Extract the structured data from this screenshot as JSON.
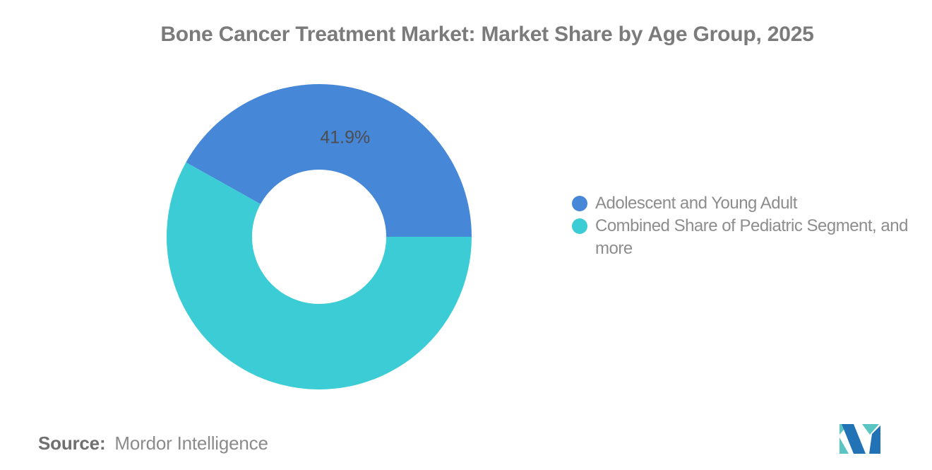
{
  "title": "Bone Cancer Treatment Market: Market Share by Age Group, 2025",
  "chart_data": {
    "type": "pie",
    "subtype": "donut",
    "title": "Bone Cancer Treatment Market: Market Share by Age Group, 2025",
    "categories": [
      "Adolescent and Young Adult",
      "Combined Share of Pediatric Segment, and more"
    ],
    "values": [
      41.9,
      58.1
    ],
    "slices": [
      {
        "label": "Adolescent and Young Adult",
        "value": 41.9,
        "color": "#4687d8",
        "data_label": "41.9%"
      },
      {
        "label": "Combined Share of Pediatric Segment, and more",
        "value": 58.1,
        "color": "#3bccd5",
        "data_label": ""
      }
    ],
    "start_angle_deg": 0,
    "direction": "counterclockwise",
    "inner_radius_ratio": 0.44,
    "legend_position": "right",
    "data_label_shown": "41.9%"
  },
  "legend": {
    "items": [
      {
        "marker_color": "#4687d8",
        "lines": [
          "Adolescent and Young Adult"
        ]
      },
      {
        "marker_color": "#3bccd5",
        "lines": [
          "Combined Share of Pediatric Segment, and",
          "more"
        ]
      }
    ]
  },
  "source": {
    "label": "Source:",
    "value": "Mordor Intelligence"
  },
  "logo": {
    "name": "mordor-intelligence-logo",
    "teal": "#5ac5c2",
    "blue": "#2273b6"
  },
  "colors": {
    "background": "#ffffff",
    "title_text": "#7b7b7b",
    "legend_text": "#8d8d8d",
    "data_label_text": "#4d4d4d",
    "series_blue": "#4687d8",
    "series_teal": "#3bccd5"
  }
}
